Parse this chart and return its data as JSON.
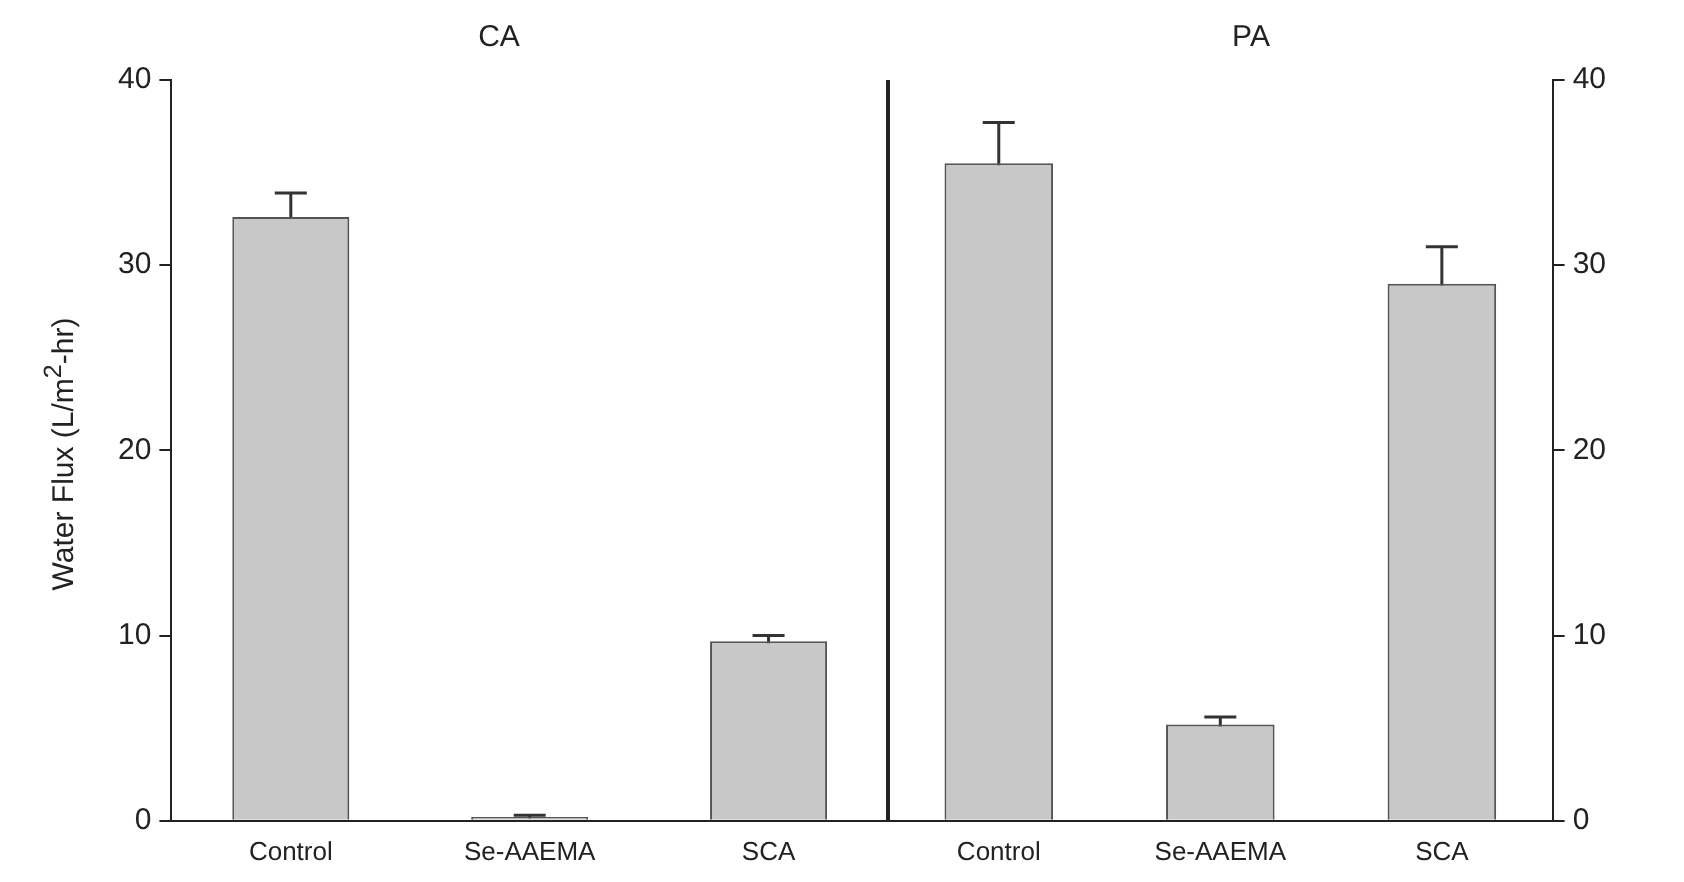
{
  "chart_data": [
    {
      "type": "bar",
      "title": "CA",
      "ylabel": "Water Flux (L/m$^{2}$-hr)",
      "categories": [
        "Control",
        "Se-AAEMA",
        "SCA"
      ],
      "values": [
        32.6,
        0.2,
        9.7
      ],
      "errors": [
        1.3,
        0.1,
        0.3
      ],
      "color": "#c8c8c8",
      "ylim": [
        0,
        40
      ],
      "yticks": [
        0,
        10,
        20,
        30,
        40
      ],
      "grid": false,
      "legend": false
    },
    {
      "type": "bar",
      "title": "PA",
      "categories": [
        "Control",
        "Se-AAEMA",
        "SCA"
      ],
      "values": [
        35.5,
        5.2,
        29.0
      ],
      "errors": [
        2.2,
        0.4,
        2.0
      ],
      "color": "#c8c8c8",
      "ylim": [
        0,
        40
      ],
      "yticks": [
        0,
        10,
        20,
        30,
        40
      ],
      "grid": false,
      "legend": false
    }
  ]
}
